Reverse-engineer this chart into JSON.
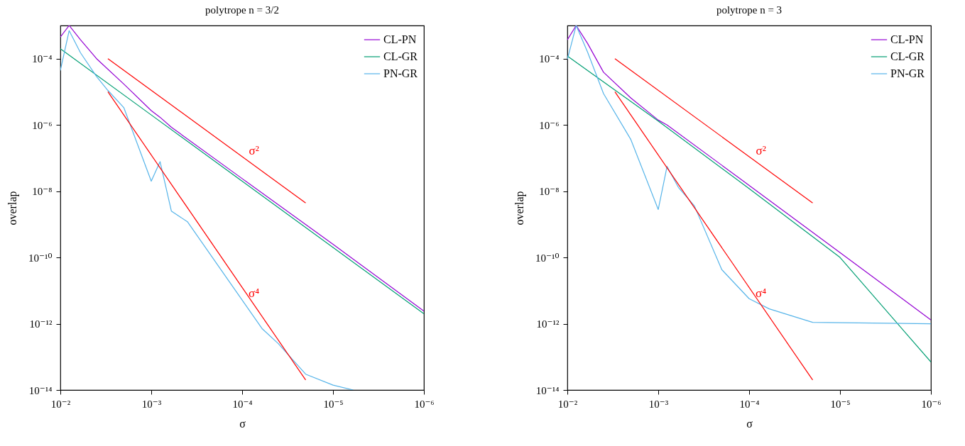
{
  "chart_data": [
    {
      "type": "line",
      "title": "polytrope n = 3/2",
      "xlabel": "σ",
      "ylabel": "overlap",
      "log": "xy",
      "legend": "top right",
      "xlim": [
        0.01,
        1e-06
      ],
      "ylim": [
        1e-14,
        0.001
      ],
      "xticks": [
        {
          "value": 0.01,
          "label": "10⁻²"
        },
        {
          "value": 0.001,
          "label": "10⁻³"
        },
        {
          "value": 0.0001,
          "label": "10⁻⁴"
        },
        {
          "value": 1e-05,
          "label": "10⁻⁵"
        },
        {
          "value": 1e-06,
          "label": "10⁻⁶"
        }
      ],
      "yticks": [
        {
          "value": 0.0001,
          "label": "10⁻⁴"
        },
        {
          "value": 1e-06,
          "label": "10⁻⁶"
        },
        {
          "value": 1e-08,
          "label": "10⁻⁸"
        },
        {
          "value": 1e-10,
          "label": "10⁻¹⁰"
        },
        {
          "value": 1e-12,
          "label": "10⁻¹²"
        },
        {
          "value": 1e-14,
          "label": "10⁻¹⁴"
        }
      ],
      "series": [
        {
          "name": "CL-PN",
          "color": "#9400d3",
          "x": [
            0.01,
            0.008,
            0.006,
            0.004,
            0.002,
            0.001,
            0.0008,
            0.0006,
            0.0001,
            1e-05,
            1e-06
          ],
          "values": [
            0.00045,
            0.001,
            0.00037,
            0.0001,
            1.7e-05,
            2.7e-06,
            1.7e-06,
            8.5e-07,
            2.4e-08,
            2.5e-10,
            2.4e-12
          ]
        },
        {
          "name": "CL-GR",
          "color": "#009e73",
          "x": [
            0.01,
            0.001,
            0.0001,
            1e-05,
            1e-06
          ],
          "values": [
            0.0002,
            2e-06,
            2e-08,
            2e-10,
            2e-12
          ]
        },
        {
          "name": "PN-GR",
          "color": "#56b4e9",
          "x": [
            0.01,
            0.008,
            0.006,
            0.004,
            0.003,
            0.002,
            0.001,
            0.0008,
            0.0006,
            0.0004,
            6e-05,
            4e-05,
            2e-05,
            1e-05,
            6e-06
          ],
          "values": [
            4.4e-05,
            0.0007,
            0.00015,
            2.9e-05,
            1.1e-05,
            3.3e-06,
            2e-08,
            7.8e-08,
            2.5e-09,
            1.2e-09,
            7e-13,
            2.5e-13,
            3e-14,
            1.4e-14,
            1e-14
          ]
        },
        {
          "color": "#ff0000",
          "x": [
            0.003,
            2e-05
          ],
          "values": [
            0.0001,
            4.4e-09
          ]
        },
        {
          "color": "#ff0000",
          "x": [
            0.003,
            2e-05
          ],
          "values": [
            1e-05,
            2e-14
          ]
        }
      ],
      "annotations": [
        "σ²",
        "σ⁴"
      ]
    },
    {
      "type": "line",
      "title": "polytrope n = 3",
      "xlabel": "σ",
      "ylabel": "overlap",
      "log": "xy",
      "legend": "top right",
      "xlim": [
        0.01,
        1e-06
      ],
      "ylim": [
        1e-14,
        0.001
      ],
      "xticks": [
        {
          "value": 0.01,
          "label": "10⁻²"
        },
        {
          "value": 0.001,
          "label": "10⁻³"
        },
        {
          "value": 0.0001,
          "label": "10⁻⁴"
        },
        {
          "value": 1e-05,
          "label": "10⁻⁵"
        },
        {
          "value": 1e-06,
          "label": "10⁻⁶"
        }
      ],
      "yticks": [
        {
          "value": 0.0001,
          "label": "10⁻⁴"
        },
        {
          "value": 1e-06,
          "label": "10⁻⁶"
        },
        {
          "value": 1e-08,
          "label": "10⁻⁸"
        },
        {
          "value": 1e-10,
          "label": "10⁻¹⁰"
        },
        {
          "value": 1e-12,
          "label": "10⁻¹²"
        },
        {
          "value": 1e-14,
          "label": "10⁻¹⁴"
        }
      ],
      "series": [
        {
          "name": "CL-PN",
          "color": "#9400d3",
          "x": [
            0.01,
            0.008,
            0.006,
            0.004,
            0.002,
            0.001,
            0.0008,
            0.0001,
            1e-05,
            1e-06
          ],
          "values": [
            0.00037,
            0.001,
            0.00029,
            3.9e-05,
            6.5e-06,
            1.4e-06,
            1e-06,
            1.5e-08,
            1.4e-10,
            1.3e-12
          ]
        },
        {
          "name": "CL-GR",
          "color": "#009e73",
          "x": [
            0.01,
            0.001,
            0.0001,
            1e-05,
            1e-06
          ],
          "values": [
            0.00012,
            1.3e-06,
            1.2e-08,
            1e-10,
            7e-14
          ]
        },
        {
          "name": "PN-GR",
          "color": "#56b4e9",
          "x": [
            0.01,
            0.008,
            0.006,
            0.004,
            0.002,
            0.001,
            0.0008,
            0.0006,
            0.0004,
            0.0002,
            0.0001,
            6e-05,
            2e-05,
            1e-06
          ],
          "values": [
            9.5e-05,
            0.001,
            0.00016,
            8.8e-06,
            3.6e-07,
            2.8e-09,
            5.6e-08,
            1.3e-08,
            3.6e-09,
            4.3e-11,
            5.7e-12,
            2.8e-12,
            1.1e-12,
            1e-12
          ]
        },
        {
          "color": "#ff0000",
          "x": [
            0.003,
            2e-05
          ],
          "values": [
            0.0001,
            4.4e-09
          ]
        },
        {
          "color": "#ff0000",
          "x": [
            0.003,
            2e-05
          ],
          "values": [
            1e-05,
            2e-14
          ]
        }
      ],
      "annotations": [
        "σ²",
        "σ⁴"
      ]
    }
  ]
}
